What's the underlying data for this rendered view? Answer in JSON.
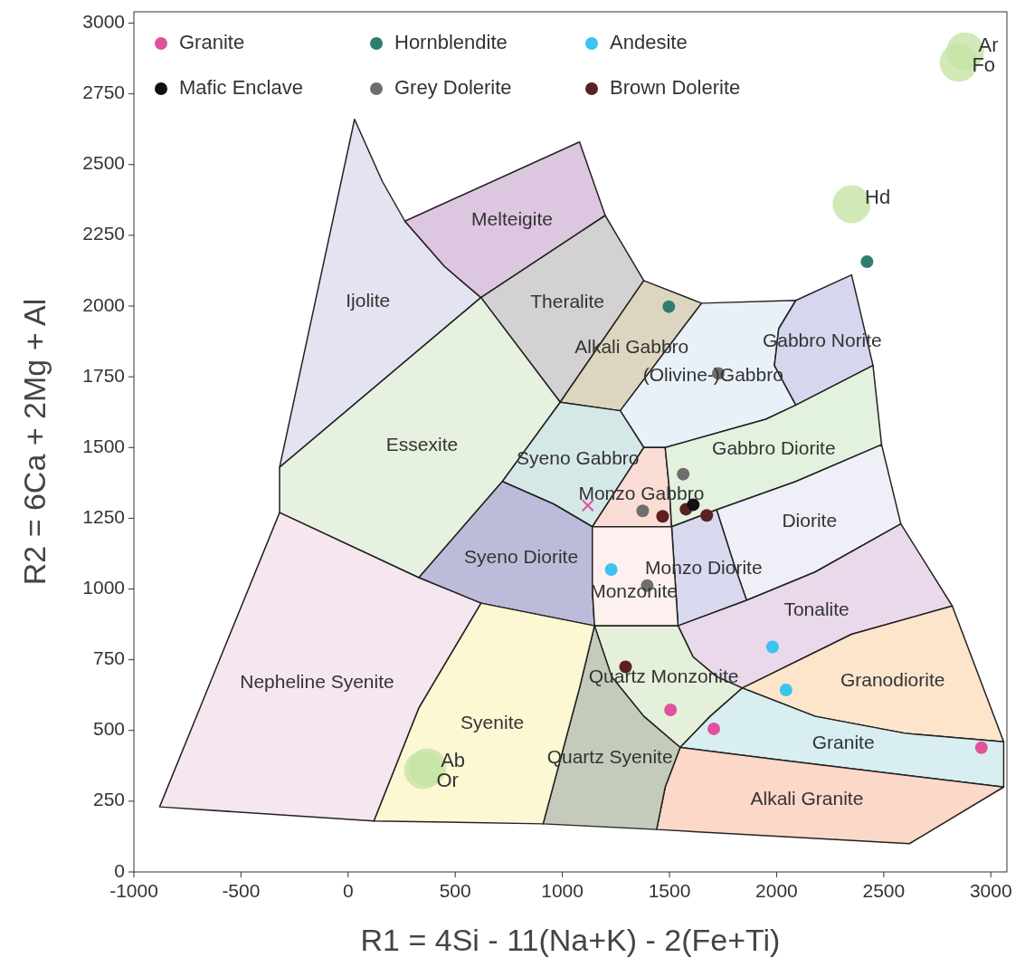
{
  "chart_data": {
    "type": "scatter",
    "xlabel": "R1 = 4Si - 11(Na+K) - 2(Fe+Ti)",
    "ylabel": "R2 = 6Ca + 2Mg + Al",
    "xlim": [
      -1000,
      3075
    ],
    "ylim": [
      0,
      3040
    ],
    "xticks": [
      -1000,
      -500,
      0,
      500,
      1000,
      1500,
      2000,
      2500,
      3000
    ],
    "yticks": [
      0,
      250,
      500,
      750,
      1000,
      1250,
      1500,
      1750,
      2000,
      2250,
      2500,
      2750,
      3000
    ],
    "grid": false,
    "legend": "top left",
    "series": [
      {
        "type": "area",
        "name": "Ijolite",
        "color": "#e4e3f1",
        "x": [
          30,
          160,
          265,
          450,
          620,
          -320
        ],
        "values": [
          2660,
          2440,
          2300,
          2140,
          2030,
          1430
        ]
      },
      {
        "type": "area",
        "name": "Melteigite",
        "color": "#ddc6e0",
        "x": [
          265,
          1080,
          1200,
          620,
          450
        ],
        "values": [
          2300,
          2580,
          2320,
          2030,
          2140
        ]
      },
      {
        "type": "area",
        "name": "Theralite",
        "color": "#d3d1d1",
        "x": [
          620,
          1200,
          1380,
          990
        ],
        "values": [
          2030,
          2320,
          2090,
          1660
        ]
      },
      {
        "type": "area",
        "name": "Alkali Gabbro",
        "color": "#dcd6c0",
        "x": [
          1380,
          1650,
          1270,
          990
        ],
        "values": [
          2090,
          2010,
          1630,
          1660
        ]
      },
      {
        "type": "area",
        "name": "(Olivine-)Gabbro",
        "color": "#e8f0f8",
        "x": [
          1650,
          2090,
          2010,
          1990,
          2090,
          1950,
          1480,
          1380,
          1270
        ],
        "values": [
          2010,
          2020,
          1920,
          1790,
          1650,
          1600,
          1500,
          1500,
          1630
        ]
      },
      {
        "type": "area",
        "name": "Gabbro Norite",
        "color": "#d6d6ee",
        "x": [
          2090,
          2350,
          2450,
          2090,
          1990,
          2010
        ],
        "values": [
          2020,
          2110,
          1790,
          1650,
          1790,
          1920
        ]
      },
      {
        "type": "area",
        "name": "Essexite",
        "color": "#e6f1df",
        "x": [
          -320,
          620,
          990,
          720,
          330,
          -320
        ],
        "values": [
          1430,
          2030,
          1660,
          1380,
          1040,
          1270
        ]
      },
      {
        "type": "area",
        "name": "Syeno Gabbro",
        "color": "#d5e8e8",
        "x": [
          720,
          990,
          1270,
          1380,
          1140,
          960
        ],
        "values": [
          1380,
          1660,
          1630,
          1500,
          1220,
          1300
        ]
      },
      {
        "type": "area",
        "name": "Monzo Gabbro",
        "color": "#f9dcd4",
        "x": [
          1380,
          1480,
          1500,
          1510,
          1140
        ],
        "values": [
          1500,
          1500,
          1350,
          1220,
          1220
        ]
      },
      {
        "type": "area",
        "name": "Gabbro Diorite",
        "color": "#e3f2df",
        "x": [
          1480,
          1950,
          2090,
          2450,
          2490,
          2090,
          1720,
          1510,
          1500
        ],
        "values": [
          1500,
          1600,
          1650,
          1790,
          1510,
          1380,
          1280,
          1220,
          1350
        ]
      },
      {
        "type": "area",
        "name": "Diorite",
        "color": "#efeff8",
        "x": [
          1720,
          2090,
          2490,
          2580,
          2180,
          1860,
          1800
        ],
        "values": [
          1280,
          1380,
          1510,
          1230,
          1060,
          960,
          1090
        ]
      },
      {
        "type": "area",
        "name": "Monzo Diorite",
        "color": "#d8d8ee",
        "x": [
          1510,
          1720,
          1800,
          1860,
          1540
        ],
        "values": [
          1220,
          1280,
          1090,
          960,
          870
        ]
      },
      {
        "type": "area",
        "name": "Syeno Diorite",
        "color": "#bcbcda",
        "x": [
          330,
          720,
          960,
          1140,
          1140,
          1150,
          620
        ],
        "values": [
          1040,
          1380,
          1300,
          1220,
          1000,
          870,
          950
        ]
      },
      {
        "type": "area",
        "name": "Monzonite",
        "color": "#fdf0ef",
        "x": [
          1140,
          1510,
          1540,
          1150,
          1140
        ],
        "values": [
          1220,
          1220,
          870,
          870,
          1000
        ]
      },
      {
        "type": "area",
        "name": "Tonalite",
        "color": "#ead9ea",
        "x": [
          1540,
          1860,
          2180,
          2580,
          2820,
          2350,
          1840,
          1720,
          1610
        ],
        "values": [
          870,
          960,
          1060,
          1230,
          940,
          840,
          650,
          690,
          760
        ]
      },
      {
        "type": "area",
        "name": "Quartz Monzonite",
        "color": "#e4f0da",
        "x": [
          1150,
          1540,
          1610,
          1720,
          1840,
          1690,
          1550,
          1380,
          1230
        ],
        "values": [
          870,
          870,
          760,
          690,
          650,
          550,
          440,
          550,
          690
        ]
      },
      {
        "type": "area",
        "name": "Granodiorite",
        "color": "#fde5cc",
        "x": [
          1840,
          2350,
          2820,
          3060,
          2600,
          2180
        ],
        "values": [
          650,
          840,
          940,
          460,
          490,
          550
        ]
      },
      {
        "type": "area",
        "name": "Granite",
        "color": "#d8eef0",
        "x": [
          1840,
          2180,
          2600,
          3060,
          3060,
          1970,
          1550,
          1690
        ],
        "values": [
          650,
          550,
          490,
          460,
          300,
          400,
          440,
          550
        ]
      },
      {
        "type": "area",
        "name": "Alkali Granite",
        "color": "#fcd8c8",
        "x": [
          1550,
          1970,
          3060,
          2620,
          1440,
          1480
        ],
        "values": [
          440,
          400,
          300,
          100,
          150,
          300
        ]
      },
      {
        "type": "area",
        "name": "Quartz Syenite",
        "color": "#c5cbbb",
        "x": [
          1150,
          1230,
          1380,
          1550,
          1480,
          1440,
          910,
          1080
        ],
        "values": [
          870,
          690,
          550,
          440,
          300,
          150,
          170,
          650
        ]
      },
      {
        "type": "area",
        "name": "Syenite",
        "color": "#fcf8d4",
        "x": [
          620,
          1150,
          1080,
          910,
          120,
          330
        ],
        "values": [
          950,
          870,
          650,
          170,
          180,
          580
        ]
      },
      {
        "type": "area",
        "name": "Nepheline Syenite",
        "color": "#f5e6f0",
        "x": [
          -320,
          330,
          620,
          330,
          120,
          -880
        ],
        "values": [
          1270,
          1040,
          950,
          580,
          180,
          230
        ]
      },
      {
        "type": "bubble",
        "color": "#c5e3a5",
        "x": [
          2880,
          2850,
          2350,
          370,
          350
        ],
        "values": [
          2900,
          2860,
          2360,
          370,
          360
        ],
        "sizes": [
          1,
          1,
          1,
          1,
          1
        ],
        "value_labels": [
          "Ar",
          "Fo",
          "Hd",
          "Ab",
          "Or"
        ]
      },
      {
        "name": "Granite",
        "color": "#e0529c",
        "marker": "circle",
        "x": [
          1505,
          1707,
          2956
        ],
        "values": [
          573,
          506,
          439
        ]
      },
      {
        "name": "Hornblendite",
        "color": "#2e7d6e",
        "marker": "circle",
        "x": [
          1497,
          2422
        ],
        "values": [
          1998,
          2157
        ]
      },
      {
        "name": "Andesite",
        "color": "#3bc4f0",
        "marker": "circle",
        "x": [
          1228,
          1981,
          2044
        ],
        "values": [
          1069,
          795,
          643
        ]
      },
      {
        "name": "Mafic Enclave",
        "color": "#111111",
        "marker": "circle",
        "x": [
          1611
        ],
        "values": [
          1298
        ]
      },
      {
        "name": "Grey Dolerite",
        "color": "#6e6e6e",
        "marker": "circle",
        "x": [
          1728,
          1564,
          1375,
          1396
        ],
        "values": [
          1762,
          1406,
          1276,
          1012
        ]
      },
      {
        "name": "Brown Dolerite",
        "color": "#5c2020",
        "marker": "circle",
        "x": [
          1468,
          1577,
          1674,
          1295
        ],
        "values": [
          1257,
          1282,
          1260,
          725
        ]
      },
      {
        "color": "#e0529c",
        "marker": "cross",
        "x": [
          1119
        ],
        "values": [
          1295
        ]
      }
    ]
  }
}
